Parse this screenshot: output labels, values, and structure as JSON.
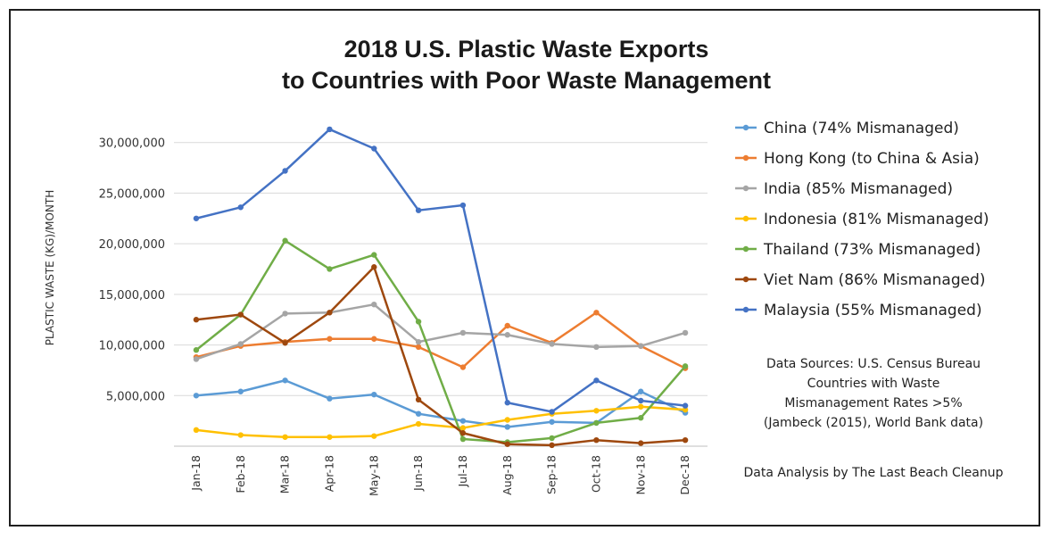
{
  "chart_data": {
    "type": "line",
    "title": [
      "2018 U.S. Plastic Waste Exports",
      "to Countries with Poor Waste Management"
    ],
    "xlabel": "",
    "ylabel": "PLASTIC WASTE (KG)/MONTH",
    "ylim": [
      0,
      32000000
    ],
    "yticks": [
      5000000,
      10000000,
      15000000,
      20000000,
      25000000,
      30000000
    ],
    "ytick_labels": [
      "5,000,000",
      "10,000,000",
      "15,000,000",
      "20,000,000",
      "25,000,000",
      "30,000,000"
    ],
    "grid": true,
    "legend_position": "right",
    "categories": [
      "Jan-18",
      "Feb-18",
      "Mar-18",
      "Apr-18",
      "May-18",
      "Jun-18",
      "Jul-18",
      "Aug-18",
      "Sep-18",
      "Oct-18",
      "Nov-18",
      "Dec-18"
    ],
    "series": [
      {
        "name": "China (74% Mismanaged)",
        "color": "#5b9bd5",
        "values": [
          5000000,
          5400000,
          6500000,
          4700000,
          5100000,
          3200000,
          2500000,
          1900000,
          2400000,
          2300000,
          5400000,
          3300000
        ]
      },
      {
        "name": "Hong Kong (to China & Asia)",
        "color": "#ed7d31",
        "values": [
          8800000,
          9900000,
          10300000,
          10600000,
          10600000,
          9800000,
          7800000,
          11900000,
          10200000,
          13200000,
          9900000,
          7700000
        ]
      },
      {
        "name": "India (85% Mismanaged)",
        "color": "#a5a5a5",
        "values": [
          8600000,
          10100000,
          13100000,
          13200000,
          14000000,
          10300000,
          11200000,
          11000000,
          10100000,
          9800000,
          9900000,
          11200000
        ]
      },
      {
        "name": "Indonesia (81% Mismanaged)",
        "color": "#ffc000",
        "values": [
          1600000,
          1100000,
          900000,
          900000,
          1000000,
          2200000,
          1800000,
          2600000,
          3200000,
          3500000,
          3900000,
          3600000
        ]
      },
      {
        "name": "Thailand (73% Mismanaged)",
        "color": "#70ad47",
        "values": [
          9500000,
          13000000,
          20300000,
          17500000,
          18900000,
          12300000,
          700000,
          400000,
          800000,
          2300000,
          2800000,
          7900000
        ]
      },
      {
        "name": "Viet Nam (86% Mismanaged)",
        "color": "#9e480e",
        "values": [
          12500000,
          13000000,
          10200000,
          13200000,
          17700000,
          4600000,
          1300000,
          200000,
          100000,
          600000,
          300000,
          600000
        ]
      },
      {
        "name": "Malaysia (55% Mismanaged)",
        "color": "#4472c4",
        "values": [
          22500000,
          23600000,
          27200000,
          31300000,
          29400000,
          23300000,
          23800000,
          4300000,
          3400000,
          6500000,
          4500000,
          4000000
        ]
      }
    ],
    "notes": [
      "Data Sources: U.S. Census Bureau",
      "Countries with Waste",
      "Mismanagement Rates >5%",
      "(Jambeck (2015), World Bank data)"
    ],
    "credit": "Data Analysis by The Last Beach Cleanup"
  }
}
